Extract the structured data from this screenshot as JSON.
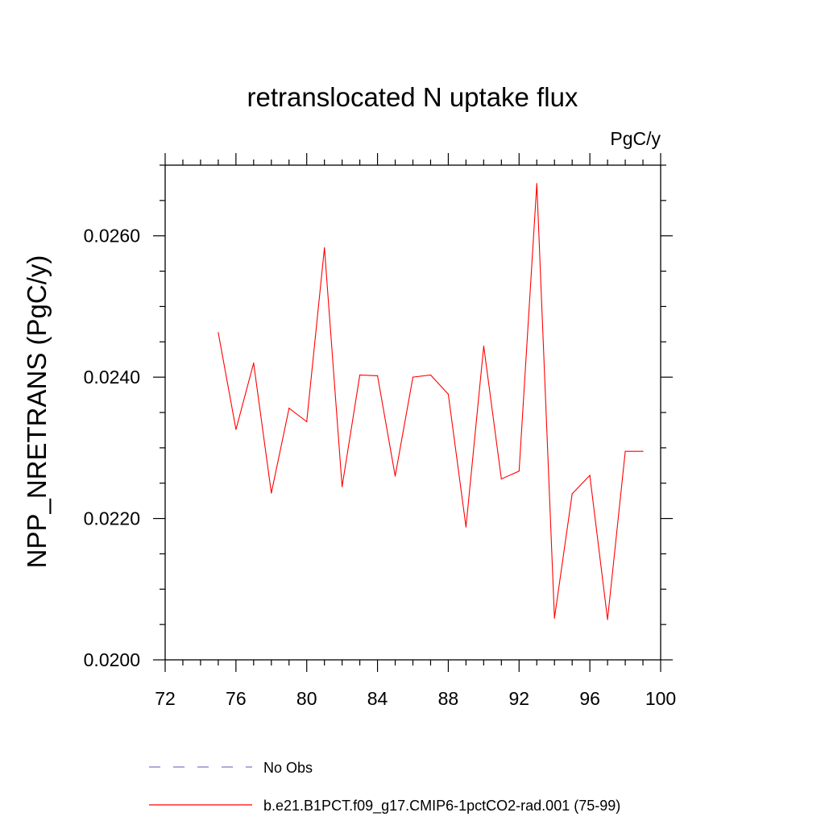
{
  "chart_data": {
    "type": "line",
    "title": "retranslocated N uptake flux",
    "units_label": "PgC/y",
    "ylabel": "NPP_NRETRANS  (PgC/y)",
    "xlabel": "",
    "xlim": [
      72,
      100
    ],
    "ylim": [
      0.02,
      0.027
    ],
    "x_ticks": [
      72,
      76,
      80,
      84,
      88,
      92,
      96,
      100
    ],
    "x_tick_labels": [
      "72",
      "76",
      "80",
      "84",
      "88",
      "92",
      "96",
      "100"
    ],
    "y_ticks": [
      0.02,
      0.022,
      0.024,
      0.026
    ],
    "y_tick_labels": [
      "0.0200",
      "0.0220",
      "0.0240",
      "0.0260"
    ],
    "y_minor_step": 0.0005,
    "x_minor_step": 1,
    "grid": false,
    "legend_position": "bottom",
    "series": [
      {
        "name": "No Obs",
        "color": "#7b7bc8",
        "dash": "dashed",
        "x": [],
        "y": []
      },
      {
        "name": "b.e21.B1PCT.f09_g17.CMIP6-1pctCO2-rad.001 (75-99)",
        "color": "#ff0000",
        "dash": "solid",
        "x": [
          75,
          76,
          77,
          78,
          79,
          80,
          81,
          82,
          83,
          84,
          85,
          86,
          87,
          88,
          89,
          90,
          91,
          92,
          93,
          94,
          95,
          96,
          97,
          98,
          99
        ],
        "y": [
          0.02463,
          0.02326,
          0.0242,
          0.02236,
          0.02356,
          0.02337,
          0.02583,
          0.02245,
          0.02403,
          0.02402,
          0.0226,
          0.024,
          0.02403,
          0.02376,
          0.02188,
          0.02444,
          0.02256,
          0.02267,
          0.02674,
          0.02059,
          0.02235,
          0.02261,
          0.02057,
          0.02295,
          0.02295
        ]
      }
    ]
  }
}
